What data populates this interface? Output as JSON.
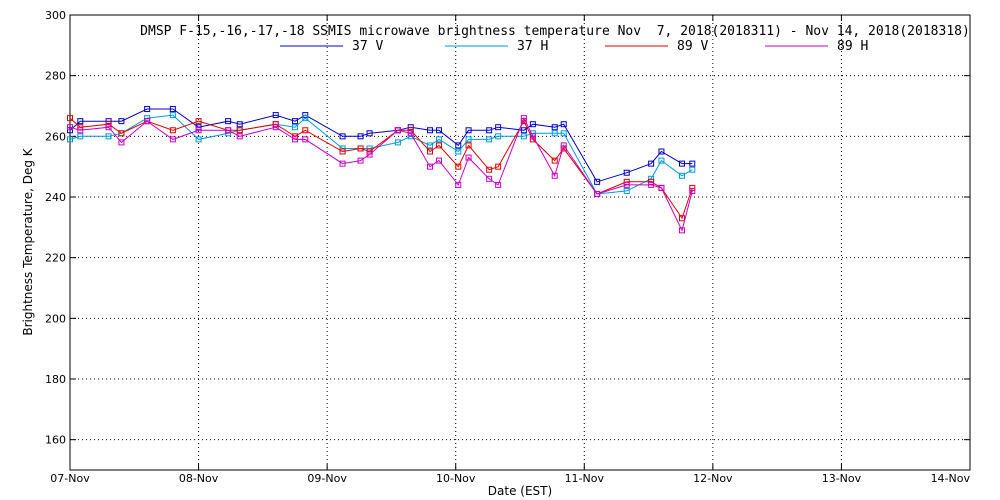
{
  "chart_data": {
    "type": "line",
    "title": "DMSP F-15,-16,-17,-18 SSMIS microwave brightness temperature Nov  7, 2018(2018311) - Nov 14, 2018(2018318)",
    "xlabel": "Date (EST)",
    "ylabel": "Brightness Temperature, Deg K",
    "xlim": [
      0,
      7
    ],
    "ylim": [
      150,
      300
    ],
    "x_ticks": [
      {
        "v": 0,
        "label": "07-Nov"
      },
      {
        "v": 1,
        "label": "08-Nov"
      },
      {
        "v": 2,
        "label": "09-Nov"
      },
      {
        "v": 3,
        "label": "10-Nov"
      },
      {
        "v": 4,
        "label": "11-Nov"
      },
      {
        "v": 5,
        "label": "12-Nov"
      },
      {
        "v": 6,
        "label": "13-Nov"
      },
      {
        "v": 7,
        "label": "14-Nov"
      }
    ],
    "y_ticks": [
      {
        "v": 160,
        "label": "160"
      },
      {
        "v": 180,
        "label": "180"
      },
      {
        "v": 200,
        "label": "200"
      },
      {
        "v": 220,
        "label": "220"
      },
      {
        "v": 240,
        "label": "240"
      },
      {
        "v": 260,
        "label": "260"
      },
      {
        "v": 280,
        "label": "280"
      },
      {
        "v": 300,
        "label": "300"
      }
    ],
    "grid": true,
    "legend_position": "top",
    "x": [
      0.0,
      0.08,
      0.3,
      0.4,
      0.6,
      0.8,
      1.0,
      1.23,
      1.32,
      1.6,
      1.75,
      1.83,
      2.12,
      2.26,
      2.33,
      2.55,
      2.65,
      2.8,
      2.87,
      3.02,
      3.1,
      3.26,
      3.33,
      3.53,
      3.6,
      3.77,
      3.84,
      4.1,
      4.33,
      4.52,
      4.6,
      4.76,
      4.84
    ],
    "series": [
      {
        "name": "37 V",
        "color": "#0000c8",
        "values": [
          262,
          265,
          265,
          265,
          269,
          269,
          263,
          265,
          264,
          267,
          265,
          267,
          260,
          260,
          261,
          262,
          263,
          262,
          262,
          257,
          262,
          262,
          263,
          262,
          264,
          263,
          264,
          245,
          248,
          251,
          255,
          251,
          251
        ]
      },
      {
        "name": "37 H",
        "color": "#0099dd",
        "values": [
          259,
          260,
          260,
          261,
          266,
          267,
          259,
          261,
          262,
          264,
          263,
          266,
          256,
          256,
          256,
          258,
          260,
          257,
          259,
          255,
          259,
          259,
          260,
          260,
          261,
          261,
          261,
          241,
          242,
          246,
          252,
          247,
          249
        ]
      },
      {
        "name": "89 V",
        "color": "#e00000",
        "values": [
          266,
          263,
          264,
          261,
          265,
          262,
          265,
          262,
          262,
          264,
          260,
          262,
          255,
          256,
          255,
          262,
          262,
          255,
          257,
          250,
          257,
          249,
          250,
          265,
          259,
          252,
          256,
          241,
          245,
          245,
          243,
          233,
          243
        ]
      },
      {
        "name": "89 H",
        "color": "#c800c8",
        "values": [
          263,
          262,
          263,
          258,
          265,
          259,
          262,
          262,
          260,
          263,
          259,
          259,
          251,
          252,
          254,
          262,
          261,
          250,
          252,
          244,
          253,
          246,
          244,
          266,
          260,
          247,
          257,
          241,
          244,
          244,
          243,
          229,
          242
        ]
      }
    ]
  }
}
